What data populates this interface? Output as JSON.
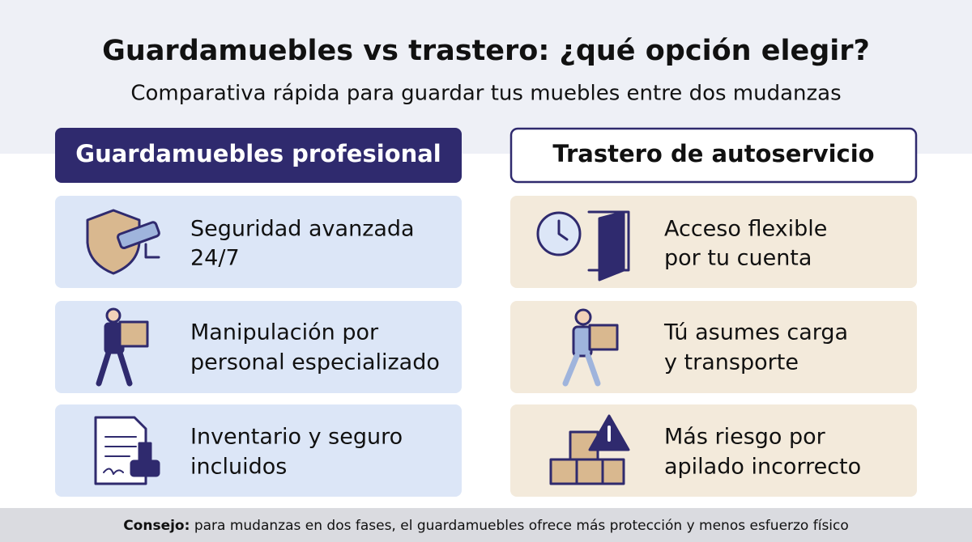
{
  "header": {
    "title": "Guardamuebles vs trastero: ¿qué opción elegir?",
    "subtitle": "Comparativa rápida para guardar tus muebles entre dos mudanzas"
  },
  "columns": [
    {
      "heading": "Guardamuebles profesional",
      "items": [
        {
          "lines": [
            "Seguridad avanzada",
            "24/7"
          ]
        },
        {
          "lines": [
            "Manipulación por",
            "personal especializado"
          ]
        },
        {
          "lines": [
            "Inventario y seguro",
            "incluidos"
          ]
        }
      ]
    },
    {
      "heading": "Trastero de autoservicio",
      "items": [
        {
          "lines": [
            "Acceso flexible",
            "por tu cuenta"
          ]
        },
        {
          "lines": [
            "Tú asumes carga",
            "y transporte"
          ]
        },
        {
          "lines": [
            "Más riesgo por",
            "apilado incorrecto"
          ]
        }
      ]
    }
  ],
  "footer": {
    "label": "Consejo:",
    "text": "para mudanzas en dos fases, el guardamuebles ofrece más protección y menos esfuerzo físico"
  }
}
